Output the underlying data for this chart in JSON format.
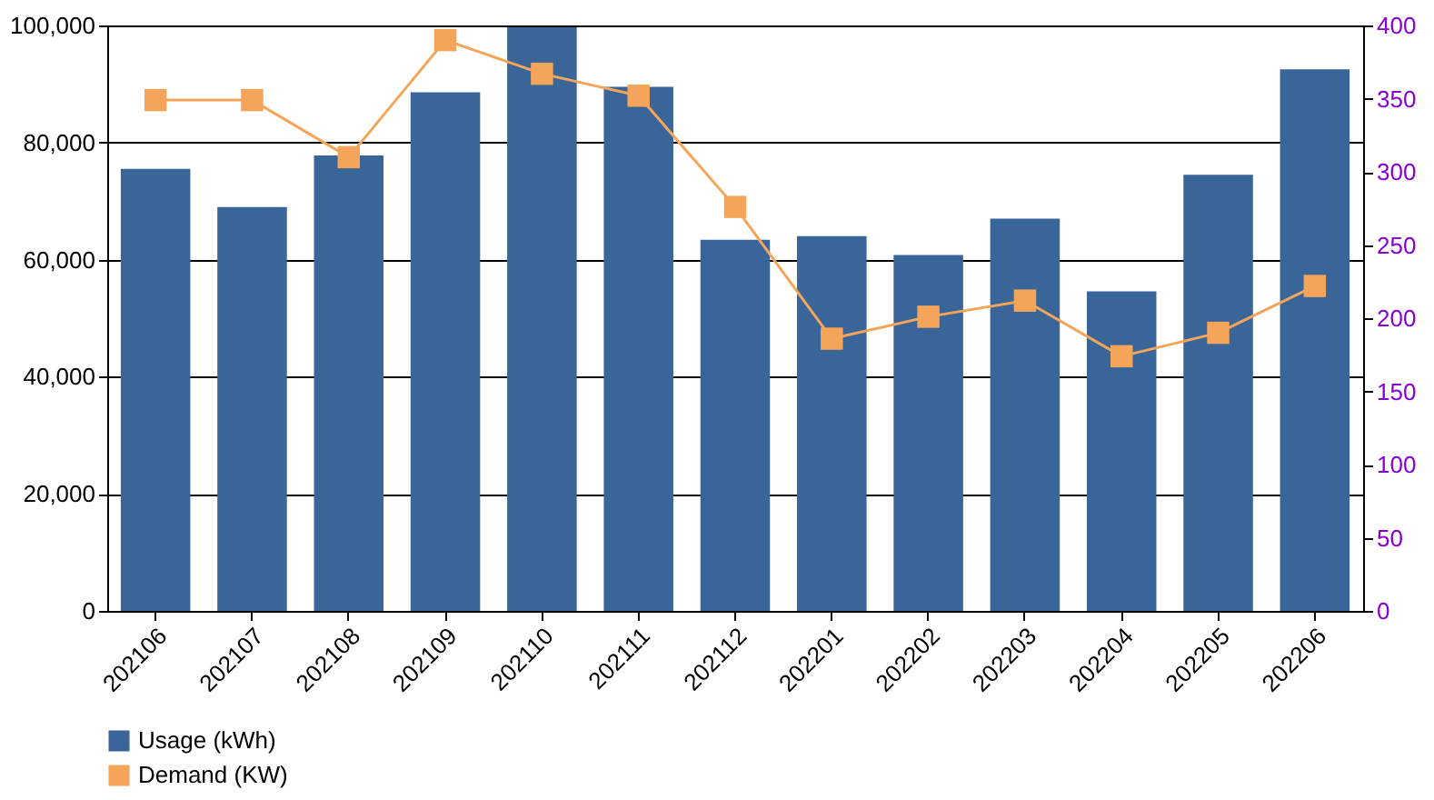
{
  "chart_data": {
    "type": "bar",
    "categories": [
      "202106",
      "202107",
      "202108",
      "202109",
      "202110",
      "202111",
      "202112",
      "202201",
      "202202",
      "202203",
      "202204",
      "202205",
      "202206"
    ],
    "series": [
      {
        "name": "Usage (kWh)",
        "color": "#3a6598",
        "values": [
          75500,
          69000,
          77800,
          88600,
          99700,
          89500,
          63400,
          64000,
          60800,
          67000,
          54600,
          74500,
          92500
        ]
      },
      {
        "name": "Demand (KW)",
        "type": "line",
        "axis": "y2",
        "color": "#f4a55a",
        "marker": "square",
        "line_style": "solid",
        "values": [
          349,
          349,
          310,
          390,
          367,
          352,
          276,
          186,
          201,
          212,
          174,
          190,
          222
        ]
      }
    ],
    "ylim": [
      0,
      100000
    ],
    "yticks": [
      {
        "value": 0,
        "label": "0"
      },
      {
        "value": 20000,
        "label": "20,000"
      },
      {
        "value": 40000,
        "label": "40,000"
      },
      {
        "value": 60000,
        "label": "60,000"
      },
      {
        "value": 80000,
        "label": "80,000"
      },
      {
        "value": 100000,
        "label": "100,000"
      }
    ],
    "y2lim": [
      0,
      400
    ],
    "y2ticks": [
      0,
      50,
      100,
      150,
      200,
      250,
      300,
      350,
      400
    ],
    "grid": "y",
    "legend": "bottom"
  }
}
